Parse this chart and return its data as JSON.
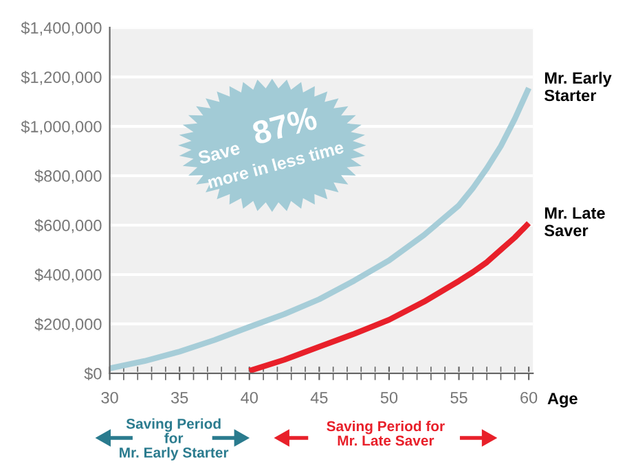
{
  "chart_data": {
    "type": "line",
    "xlabel": "Age",
    "xlim": [
      30,
      60.3
    ],
    "xticks": [
      30,
      35,
      40,
      45,
      50,
      55,
      60
    ],
    "ylim": [
      0,
      1400000
    ],
    "yticks": [
      {
        "value": 0,
        "label": "$0"
      },
      {
        "value": 200000,
        "label": "$200,000"
      },
      {
        "value": 400000,
        "label": "$400,000"
      },
      {
        "value": 600000,
        "label": "$600,000"
      },
      {
        "value": 800000,
        "label": "$800,000"
      },
      {
        "value": 1000000,
        "label": "$1,000,000"
      },
      {
        "value": 1200000,
        "label": "$1,200,000"
      },
      {
        "value": 1400000,
        "label": "$1,400,000"
      }
    ],
    "grid": "y",
    "legend": false,
    "series": [
      {
        "name": "Mr. Early Starter",
        "color": "#a6cdd8",
        "x": [
          30,
          32.5,
          35,
          37.5,
          40,
          42.5,
          45,
          47.5,
          50,
          52.5,
          55,
          56,
          57,
          58,
          59,
          60
        ],
        "values": [
          20000,
          50000,
          88000,
          135000,
          188000,
          240000,
          300000,
          375000,
          457000,
          560000,
          680000,
          750000,
          830000,
          920000,
          1030000,
          1155000
        ]
      },
      {
        "name": "Mr. Late Saver",
        "color": "#e8202a",
        "x": [
          40,
          42.5,
          45,
          47.5,
          50,
          52.5,
          55,
          56,
          57,
          58,
          59,
          60
        ],
        "values": [
          10000,
          55000,
          108000,
          160000,
          217000,
          290000,
          374000,
          410000,
          450000,
          500000,
          550000,
          608000
        ]
      }
    ],
    "annotations": [
      "Save",
      "87%",
      "more in less time",
      "Saving Period\nfor\nMr. Early Starter",
      "Saving Period for\nMr. Late Saver"
    ]
  }
}
